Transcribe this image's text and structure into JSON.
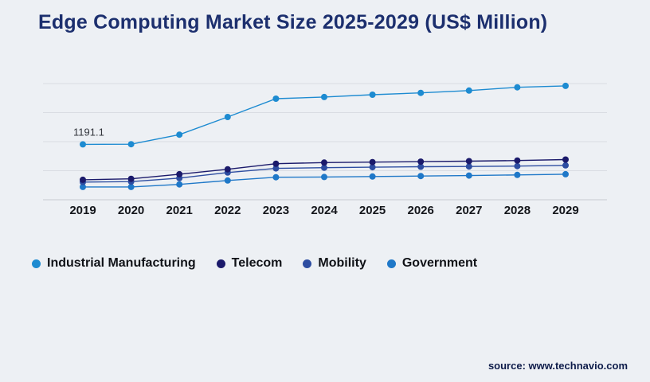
{
  "title": "Edge Computing Market Size 2025-2029 (US$ Million)",
  "source": "source: www.technavio.com",
  "colors": {
    "background": "#edf0f4",
    "title": "#1c2f6e",
    "gridline": "#d9dce2",
    "axis": "#c6cad1"
  },
  "chart_data": {
    "type": "line",
    "title": "Edge Computing Market Size 2025-2029 (US$ Million)",
    "xlabel": "",
    "ylabel": "",
    "ylim": [
      0,
      2500
    ],
    "grid": true,
    "legend_position": "bottom-left",
    "categories": [
      "2019",
      "2020",
      "2021",
      "2022",
      "2023",
      "2024",
      "2025",
      "2026",
      "2027",
      "2028",
      "2029"
    ],
    "series": [
      {
        "name": "Industrial Manufacturing",
        "color": "#1d8bd1",
        "values": [
          1191.1,
          1195,
          1400,
          1780,
          2175,
          2210,
          2260,
          2300,
          2350,
          2420,
          2450
        ]
      },
      {
        "name": "Telecom",
        "color": "#1b1a6b",
        "values": [
          430,
          450,
          550,
          655,
          775,
          800,
          810,
          820,
          830,
          845,
          865
        ]
      },
      {
        "name": "Mobility",
        "color": "#2d4da1",
        "values": [
          380,
          390,
          465,
          585,
          675,
          690,
          700,
          710,
          715,
          725,
          740
        ]
      },
      {
        "name": "Government",
        "color": "#1f78c8",
        "values": [
          275,
          275,
          330,
          415,
          485,
          490,
          500,
          510,
          520,
          535,
          550
        ]
      }
    ],
    "annotation": {
      "text": "1191.1",
      "series": "Industrial Manufacturing",
      "category": "2019"
    }
  }
}
